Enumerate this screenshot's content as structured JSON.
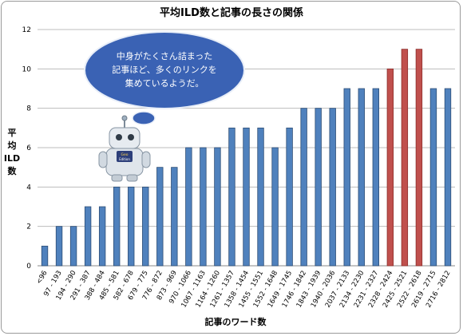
{
  "chart_data": {
    "type": "bar",
    "title": "平均ILD数と記事の長さの関係",
    "xlabel": "記事のワード数",
    "ylabel": [
      "平",
      "均",
      "ILD",
      "数"
    ],
    "ylim": [
      0,
      12
    ],
    "yticks": [
      0,
      2,
      4,
      6,
      8,
      10,
      12
    ],
    "grid": "horizontal",
    "categories": [
      "<96",
      "97 - 193",
      "194 - 290",
      "291 - 387",
      "388 - 484",
      "485 - 581",
      "582 - 678",
      "679 - 775",
      "776 - 872",
      "873 - 969",
      "970 - 1066",
      "1067 - 1163",
      "1164 - 1260",
      "1261 - 1357",
      "1358 - 1454",
      "1455 - 1551",
      "1552 - 1648",
      "1649 - 1745",
      "1746 - 1842",
      "1843 - 1939",
      "1940 - 2036",
      "2037 - 2133",
      "2134 - 2230",
      "2231 - 2327",
      "2328 - 2424",
      "2425 - 2521",
      "2522 - 2618",
      "2619 - 2715",
      "2716 - 2812"
    ],
    "values": [
      1,
      2,
      2,
      3,
      3,
      4,
      4,
      4,
      5,
      5,
      6,
      6,
      6,
      7,
      7,
      7,
      6,
      7,
      8,
      8,
      8,
      9,
      9,
      9,
      10,
      11,
      11,
      9,
      9
    ],
    "highlight_indices": [
      24,
      25,
      26
    ],
    "colors": {
      "bar": "#4f81bd",
      "bar_border": "#2c4d75",
      "highlight": "#c0504d",
      "highlight_border": "#8c2e2b",
      "grid": "#bdbdbd"
    }
  },
  "callout": {
    "lines": [
      "中身がたくさん詰まった",
      "記事ほど、多くのリンクを",
      "集めているようだ。"
    ],
    "fill": "#3a62b4"
  },
  "mascot": {
    "icon": "robot-mascot-icon",
    "badge_lines": [
      "Geo",
      "Edition"
    ]
  }
}
